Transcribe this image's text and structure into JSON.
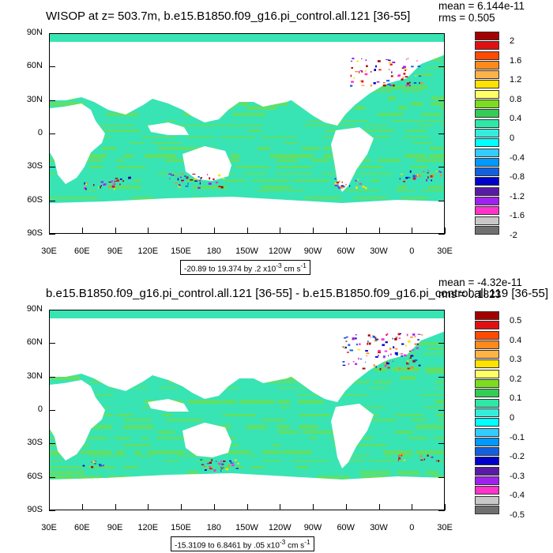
{
  "panels": [
    {
      "title": "WISOP at z= 503.7m, b.e15.B1850.f09_g16.pi_control.all.121 [36-55]",
      "mean": "mean = 6.144e-11",
      "rms": "rms = 0.505",
      "range_text": "-20.89 to 19.374 by .2 x10",
      "range_exp": "-3",
      "range_unit": " cm s",
      "range_unit_exp": "-1",
      "colorbar_labels": [
        "2",
        "1.6",
        "1.2",
        "0.8",
        "0.4",
        "0",
        "-0.4",
        "-0.8",
        "-1.2",
        "-1.6",
        "-2"
      ]
    },
    {
      "title": "b.e15.B1850.f09_g16.pi_control.all.121 [36-55] - b.e15.B1850.f09_g16.pi_control.all.119 [36-55]",
      "mean": "mean = -4.32e-11",
      "rms": "rms = 0.1823",
      "range_text": "-15.3109 to 6.8461 by .05 x10",
      "range_exp": "-3",
      "range_unit": " cm s",
      "range_unit_exp": "-1",
      "colorbar_labels": [
        "0.5",
        "0.4",
        "0.3",
        "0.2",
        "0.1",
        "0",
        "-0.1",
        "-0.2",
        "-0.3",
        "-0.4",
        "-0.5"
      ]
    }
  ],
  "lat_labels": [
    "90N",
    "60N",
    "30N",
    "0",
    "30S",
    "60S",
    "90S"
  ],
  "lon_labels": [
    "30E",
    "60E",
    "90E",
    "120E",
    "150E",
    "180",
    "150W",
    "120W",
    "90W",
    "60W",
    "30W",
    "0",
    "30E"
  ],
  "colorbar_colors": [
    "#a50000",
    "#e01010",
    "#ff4a00",
    "#ff8a1a",
    "#ffb347",
    "#ffe200",
    "#ffff66",
    "#7ddc1f",
    "#33cc55",
    "#2ee8a8",
    "#33eedd",
    "#00ffff",
    "#33ccff",
    "#0099ff",
    "#1060e0",
    "#0000cc",
    "#5a1aa8",
    "#a020f0",
    "#ff33cc",
    "#c8c8c8",
    "#707070"
  ],
  "colors": {
    "ocean_base": "#38e4b3",
    "ocean_alt": "#5fe06a",
    "land": "#ffffff"
  }
}
